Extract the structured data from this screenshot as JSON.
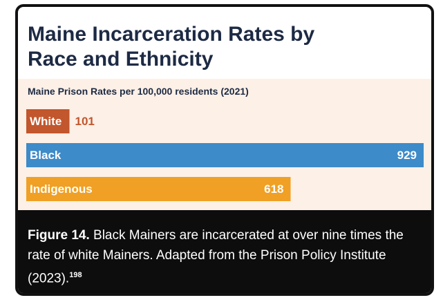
{
  "chart_data": {
    "type": "bar",
    "orientation": "horizontal",
    "title": "Maine Incarceration Rates by Race and Ethnicity",
    "subtitle": "Maine Prison Rates per 100,000 residents (2021)",
    "categories": [
      "White",
      "Black",
      "Indigenous"
    ],
    "values": [
      101,
      929,
      618
    ],
    "colors": [
      "#c2562d",
      "#3d8bc9",
      "#f0a024"
    ],
    "caption": {
      "label": "Figure 14.",
      "text": "Black Mainers are incarcerated at over nine times the rate of white Mainers. Adapted from the Prison Policy Institute (2023).",
      "footnote": "198"
    }
  }
}
